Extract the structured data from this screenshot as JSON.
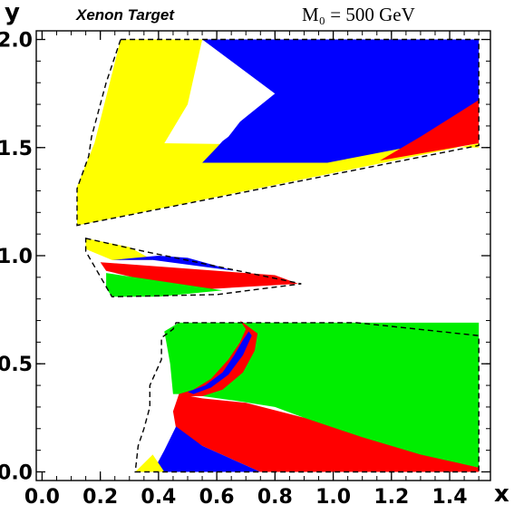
{
  "chart_data": {
    "type": "area",
    "title": "Xenon Target",
    "annotation": "M₀ = 500 GeV",
    "xlabel": "x",
    "ylabel": "y",
    "xlim": [
      -0.02,
      1.54
    ],
    "ylim": [
      -0.04,
      2.04
    ],
    "x_ticks": [
      "0.0",
      "0.2",
      "0.4",
      "0.6",
      "0.8",
      "1.0",
      "1.2",
      "1.4"
    ],
    "y_ticks": [
      "0.0",
      "0.5",
      "1.0",
      "1.5",
      "2.0"
    ],
    "colors": {
      "yellow": "#ffff00",
      "blue": "#0000ff",
      "red": "#ff0000",
      "green": "#00ee00",
      "boundary": "#000000"
    },
    "regions": [
      {
        "id": "upper-yellow",
        "color": "yellow",
        "points": [
          [
            0.27,
            2.0
          ],
          [
            0.55,
            2.0
          ],
          [
            0.5,
            1.7
          ],
          [
            0.42,
            1.52
          ],
          [
            1.5,
            1.5
          ],
          [
            1.5,
            1.52
          ],
          [
            0.12,
            1.14
          ],
          [
            0.12,
            1.32
          ],
          [
            0.18,
            1.52
          ]
        ]
      },
      {
        "id": "upper-blue",
        "color": "blue",
        "points": [
          [
            0.55,
            2.0
          ],
          [
            1.5,
            2.0
          ],
          [
            1.5,
            1.72
          ],
          [
            1.42,
            1.6
          ],
          [
            1.25,
            1.5
          ],
          [
            0.98,
            1.43
          ],
          [
            0.55,
            1.43
          ],
          [
            0.6,
            1.5
          ],
          [
            0.62,
            1.53
          ],
          [
            0.64,
            1.55
          ],
          [
            0.68,
            1.62
          ],
          [
            0.8,
            1.75
          ]
        ]
      },
      {
        "id": "upper-red",
        "color": "red",
        "points": [
          [
            1.5,
            1.72
          ],
          [
            1.5,
            1.52
          ],
          [
            1.16,
            1.44
          ],
          [
            1.3,
            1.55
          ]
        ]
      },
      {
        "id": "middle-yellow",
        "color": "yellow",
        "points": [
          [
            0.15,
            1.08
          ],
          [
            0.15,
            1.03
          ],
          [
            0.24,
            0.98
          ],
          [
            0.38,
            0.98
          ],
          [
            0.3,
            1.04
          ]
        ]
      },
      {
        "id": "middle-blue",
        "color": "blue",
        "points": [
          [
            0.24,
            0.98
          ],
          [
            0.38,
            0.98
          ],
          [
            0.66,
            0.93
          ],
          [
            0.5,
            0.99
          ],
          [
            0.4,
            1.0
          ]
        ]
      },
      {
        "id": "middle-red",
        "color": "red",
        "points": [
          [
            0.2,
            0.97
          ],
          [
            0.8,
            0.91
          ],
          [
            0.88,
            0.87
          ],
          [
            0.5,
            0.84
          ],
          [
            0.22,
            0.93
          ]
        ]
      },
      {
        "id": "middle-green",
        "color": "green",
        "points": [
          [
            0.22,
            0.92
          ],
          [
            0.62,
            0.84
          ],
          [
            0.4,
            0.81
          ],
          [
            0.24,
            0.81
          ],
          [
            0.22,
            0.85
          ]
        ]
      },
      {
        "id": "lower-green",
        "color": "green",
        "points": [
          [
            0.42,
            0.65
          ],
          [
            0.47,
            0.69
          ],
          [
            1.5,
            0.69
          ],
          [
            1.5,
            0.02
          ],
          [
            1.2,
            0.1
          ],
          [
            1.0,
            0.2
          ],
          [
            0.8,
            0.3
          ],
          [
            0.66,
            0.33
          ],
          [
            0.5,
            0.36
          ],
          [
            0.45,
            0.36
          ],
          [
            0.44,
            0.5
          ]
        ]
      },
      {
        "id": "lower-red",
        "color": "red",
        "points": [
          [
            0.47,
            0.36
          ],
          [
            0.55,
            0.34
          ],
          [
            0.7,
            0.32
          ],
          [
            0.9,
            0.25
          ],
          [
            1.1,
            0.16
          ],
          [
            1.3,
            0.08
          ],
          [
            1.5,
            0.02
          ],
          [
            1.5,
            0.0
          ],
          [
            0.75,
            0.0
          ],
          [
            0.55,
            0.12
          ],
          [
            0.46,
            0.2
          ],
          [
            0.45,
            0.28
          ]
        ]
      },
      {
        "id": "lower-blue",
        "color": "blue",
        "points": [
          [
            0.46,
            0.21
          ],
          [
            0.55,
            0.12
          ],
          [
            0.75,
            0.0
          ],
          [
            0.38,
            0.0
          ],
          [
            0.42,
            0.1
          ]
        ]
      },
      {
        "id": "lower-yellow",
        "color": "yellow",
        "points": [
          [
            0.32,
            0.0
          ],
          [
            0.42,
            0.0
          ],
          [
            0.38,
            0.08
          ]
        ]
      },
      {
        "id": "arc-red",
        "color": "red",
        "points": [
          [
            0.47,
            0.36
          ],
          [
            0.52,
            0.38
          ],
          [
            0.58,
            0.43
          ],
          [
            0.64,
            0.52
          ],
          [
            0.68,
            0.6
          ],
          [
            0.7,
            0.66
          ],
          [
            0.68,
            0.7
          ],
          [
            0.74,
            0.64
          ],
          [
            0.73,
            0.56
          ],
          [
            0.69,
            0.46
          ],
          [
            0.62,
            0.38
          ],
          [
            0.55,
            0.35
          ],
          [
            0.48,
            0.35
          ]
        ]
      },
      {
        "id": "arc-blue",
        "color": "blue",
        "points": [
          [
            0.5,
            0.37
          ],
          [
            0.56,
            0.4
          ],
          [
            0.62,
            0.46
          ],
          [
            0.66,
            0.54
          ],
          [
            0.69,
            0.61
          ],
          [
            0.71,
            0.65
          ],
          [
            0.72,
            0.63
          ],
          [
            0.69,
            0.54
          ],
          [
            0.64,
            0.45
          ],
          [
            0.58,
            0.39
          ],
          [
            0.52,
            0.36
          ]
        ]
      }
    ],
    "boundaries": [
      {
        "id": "upper-boundary",
        "points": [
          [
            0.27,
            2.0
          ],
          [
            1.5,
            2.0
          ],
          [
            1.5,
            1.51
          ],
          [
            0.12,
            1.14
          ],
          [
            0.12,
            1.31
          ],
          [
            0.16,
            1.46
          ],
          [
            0.17,
            1.55
          ],
          [
            0.22,
            1.8
          ]
        ]
      },
      {
        "id": "middle-boundary",
        "points": [
          [
            0.15,
            1.08
          ],
          [
            0.35,
            1.02
          ],
          [
            0.89,
            0.87
          ],
          [
            0.6,
            0.82
          ],
          [
            0.24,
            0.81
          ],
          [
            0.15,
            1.02
          ]
        ]
      },
      {
        "id": "lower-boundary",
        "points": [
          [
            0.32,
            0.0
          ],
          [
            1.5,
            0.0
          ],
          [
            1.5,
            0.63
          ],
          [
            1.08,
            0.69
          ],
          [
            0.46,
            0.69
          ],
          [
            0.45,
            0.66
          ],
          [
            0.41,
            0.62
          ],
          [
            0.41,
            0.52
          ],
          [
            0.37,
            0.4
          ],
          [
            0.37,
            0.3
          ],
          [
            0.35,
            0.2
          ],
          [
            0.33,
            0.12
          ]
        ]
      }
    ]
  }
}
